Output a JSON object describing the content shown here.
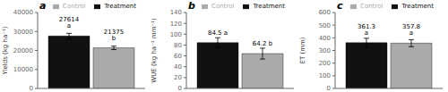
{
  "chart_data": [
    {
      "type": "bar",
      "title": "a",
      "ylabel": "Yields (kg ha⁻¹)",
      "categories": [
        null
      ],
      "series": [
        {
          "name": "Treatment",
          "color": "#111111",
          "values": [
            27614
          ],
          "errors": [
            1400
          ],
          "value_labels": [
            "27614 a"
          ]
        },
        {
          "name": "Control",
          "color": "#aaaaaa",
          "values": [
            21375
          ],
          "errors": [
            900
          ],
          "value_labels": [
            "21375 b"
          ]
        }
      ],
      "ylim": [
        0,
        40000
      ],
      "yticks": [
        0,
        10000,
        20000,
        30000,
        40000
      ],
      "data_labels": true,
      "legend": "upper right",
      "grid": false,
      "tick_labels": "y"
    },
    {
      "type": "bar",
      "title": "b",
      "ylabel": "WUE (kg ha⁻¹ mm⁻¹)",
      "categories": [
        null
      ],
      "series": [
        {
          "name": "Treatment",
          "color": "#111111",
          "values": [
            84.5
          ],
          "errors": [
            9
          ],
          "value_labels": [
            "84.5 a"
          ]
        },
        {
          "name": "Control",
          "color": "#aaaaaa",
          "values": [
            64.2
          ],
          "errors": [
            10
          ],
          "value_labels": [
            "64.2 b"
          ]
        }
      ],
      "ylim": [
        0,
        140
      ],
      "yticks": [
        0,
        20,
        40,
        60,
        80,
        100,
        120,
        140
      ],
      "data_labels": true,
      "legend": "upper right",
      "grid": false,
      "tick_labels": "y"
    },
    {
      "type": "bar",
      "title": "c",
      "ylabel": "ET (mm)",
      "categories": [
        null
      ],
      "series": [
        {
          "name": "Treatment",
          "color": "#111111",
          "values": [
            361.3
          ],
          "errors": [
            35
          ],
          "value_labels": [
            "361.3 a"
          ]
        },
        {
          "name": "Control",
          "color": "#aaaaaa",
          "values": [
            357.8
          ],
          "errors": [
            28
          ],
          "value_labels": [
            "357.8 a"
          ]
        }
      ],
      "ylim": [
        0,
        600
      ],
      "yticks": [
        0,
        100,
        200,
        300,
        400,
        500,
        600
      ],
      "data_labels": true,
      "legend": "upper right",
      "grid": false,
      "tick_labels": "y"
    }
  ]
}
